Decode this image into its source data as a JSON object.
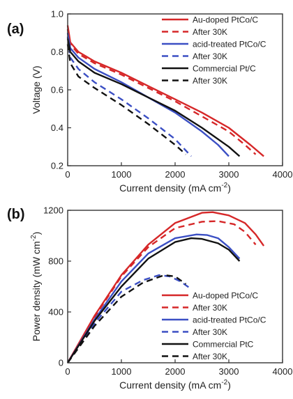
{
  "chart_data": [
    {
      "type": "line",
      "panel_label": "(a)",
      "xlabel": "Current density (mA cm",
      "xlabel_sup": "-2",
      "xlabel_end": ")",
      "ylabel": "Voltage (V)",
      "xlim": [
        0,
        4000
      ],
      "ylim": [
        0.2,
        1.0
      ],
      "x_ticks": [
        0,
        1000,
        2000,
        3000,
        4000
      ],
      "y_ticks": [
        0.2,
        0.4,
        0.6,
        0.8,
        1.0
      ],
      "x_tick_labels": [
        "0",
        "1000",
        "2000",
        "3000",
        "4000"
      ],
      "y_tick_labels": [
        "0.2",
        "0.4",
        "0.6",
        "0.8",
        "1.0"
      ],
      "legend_position": "top-right",
      "series": [
        {
          "name": "Au-doped PtCo/C",
          "color": "#d62728",
          "dash": "solid",
          "x": [
            0,
            50,
            200,
            500,
            1000,
            1500,
            2000,
            2500,
            3000,
            3400,
            3650
          ],
          "y": [
            0.94,
            0.85,
            0.8,
            0.75,
            0.69,
            0.62,
            0.55,
            0.48,
            0.4,
            0.31,
            0.25
          ]
        },
        {
          "name": "After 30K",
          "color": "#d62728",
          "dash": "dashed",
          "x": [
            0,
            50,
            200,
            500,
            1000,
            1500,
            2000,
            2500,
            3000,
            3300,
            3500
          ],
          "y": [
            0.92,
            0.84,
            0.79,
            0.74,
            0.68,
            0.61,
            0.54,
            0.46,
            0.38,
            0.31,
            0.26
          ]
        },
        {
          "name": "acid-treated PtCo/C",
          "color": "#3b4fc4",
          "dash": "solid",
          "x": [
            0,
            50,
            200,
            500,
            1000,
            1500,
            2000,
            2500,
            2800,
            3000
          ],
          "y": [
            0.9,
            0.82,
            0.77,
            0.71,
            0.64,
            0.56,
            0.48,
            0.38,
            0.31,
            0.25
          ]
        },
        {
          "name": "After 30K",
          "color": "#3b4fc4",
          "dash": "dashed",
          "x": [
            0,
            50,
            200,
            500,
            1000,
            1500,
            2000,
            2300
          ],
          "y": [
            0.88,
            0.77,
            0.71,
            0.64,
            0.55,
            0.45,
            0.34,
            0.25
          ]
        },
        {
          "name": "Commercial Pt/C",
          "color": "#111111",
          "dash": "solid",
          "x": [
            0,
            50,
            200,
            500,
            1000,
            1500,
            2000,
            2500,
            3000,
            3200
          ],
          "y": [
            0.87,
            0.8,
            0.75,
            0.69,
            0.63,
            0.56,
            0.49,
            0.4,
            0.3,
            0.25
          ]
        },
        {
          "name": "After 30K",
          "color": "#111111",
          "dash": "dashed",
          "x": [
            0,
            50,
            200,
            500,
            1000,
            1500,
            2000,
            2200
          ],
          "y": [
            0.84,
            0.74,
            0.67,
            0.61,
            0.52,
            0.42,
            0.31,
            0.26
          ]
        }
      ]
    },
    {
      "type": "line",
      "panel_label": "(b)",
      "xlabel": "Current density (mA cm",
      "xlabel_sup": "-2",
      "xlabel_end": ")",
      "ylabel": "Power density (mW cm",
      "ylabel_sup": "-2",
      "ylabel_end": ")",
      "xlim": [
        0,
        4000
      ],
      "ylim": [
        0,
        1200
      ],
      "x_ticks": [
        0,
        1000,
        2000,
        3000,
        4000
      ],
      "y_ticks": [
        0,
        400,
        800,
        1200
      ],
      "x_tick_labels": [
        "0",
        "1000",
        "2000",
        "3000",
        "4000"
      ],
      "y_tick_labels": [
        "0",
        "400",
        "800",
        "1200"
      ],
      "legend_position": "bottom-right",
      "series": [
        {
          "name": "Au-doped PtCo/C",
          "color": "#d62728",
          "dash": "solid",
          "x": [
            0,
            500,
            1000,
            1500,
            2000,
            2500,
            2700,
            3000,
            3300,
            3500,
            3650
          ],
          "y": [
            0,
            370,
            690,
            930,
            1100,
            1180,
            1185,
            1160,
            1100,
            1010,
            920
          ]
        },
        {
          "name": "After 30K",
          "color": "#d62728",
          "dash": "dashed",
          "x": [
            0,
            500,
            1000,
            1500,
            2000,
            2500,
            2800,
            3100,
            3300,
            3500
          ],
          "y": [
            0,
            360,
            680,
            910,
            1060,
            1110,
            1115,
            1090,
            1030,
            930
          ]
        },
        {
          "name": "acid-treated PtCo/C",
          "color": "#3b4fc4",
          "dash": "solid",
          "x": [
            0,
            500,
            1000,
            1500,
            2000,
            2400,
            2600,
            2800,
            3000,
            3200
          ],
          "y": [
            0,
            340,
            640,
            860,
            980,
            1010,
            1005,
            980,
            910,
            820
          ]
        },
        {
          "name": "After 30K",
          "color": "#3b4fc4",
          "dash": "dashed",
          "x": [
            0,
            500,
            1000,
            1400,
            1700,
            1900,
            2100,
            2300
          ],
          "y": [
            0,
            310,
            560,
            650,
            690,
            680,
            640,
            580
          ]
        },
        {
          "name": "Commercial PtC",
          "color": "#111111",
          "dash": "solid",
          "x": [
            0,
            500,
            1000,
            1500,
            2000,
            2300,
            2500,
            2800,
            3000,
            3200
          ],
          "y": [
            0,
            330,
            600,
            820,
            950,
            980,
            975,
            940,
            890,
            800
          ]
        },
        {
          "name": "After 30K",
          "color": "#111111",
          "dash": "dashed",
          "x": [
            0,
            500,
            1000,
            1400,
            1800,
            2000,
            2200
          ],
          "y": [
            0,
            290,
            520,
            630,
            690,
            680,
            620
          ]
        }
      ]
    }
  ]
}
